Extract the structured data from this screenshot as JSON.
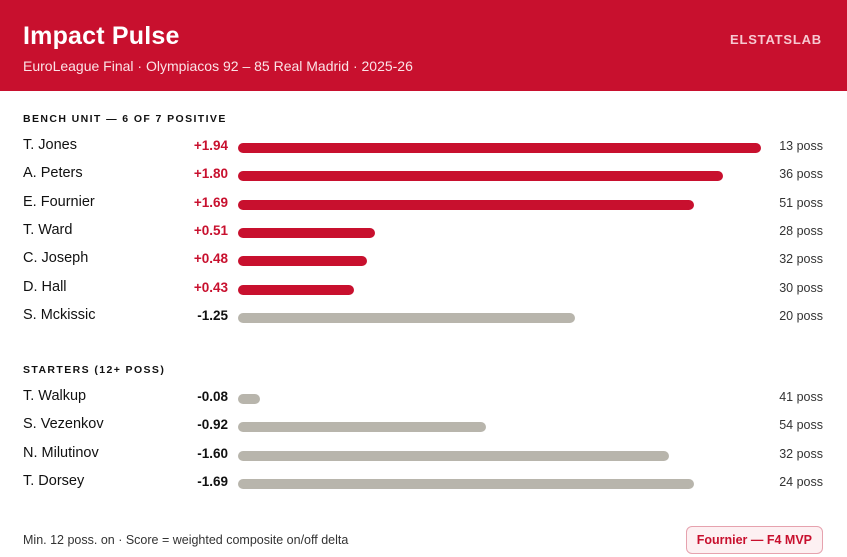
{
  "header": {
    "title": "Impact Pulse",
    "subtitle": "EuroLeague Final · Olympiacos 92 – 85 Real Madrid · 2025-26",
    "brand": "ELSTATSLAB"
  },
  "sections": {
    "bench_label": "BENCH UNIT — 6 OF 7 POSITIVE",
    "starters_label": "STARTERS (12+ POSS)"
  },
  "footer": {
    "note": "Min. 12 poss. on · Score = weighted composite on/off delta",
    "badge": "Fournier — F4 MVP"
  },
  "colors": {
    "accent": "#c8102e",
    "negative_bar": "#b8b5ac"
  },
  "chart_data": {
    "type": "bar",
    "orientation": "horizontal",
    "value_max": 1.94,
    "groups": [
      {
        "label": "BENCH UNIT — 6 OF 7 POSITIVE",
        "rows": [
          {
            "name": "T. Jones",
            "score": "+1.94",
            "value": 1.94,
            "poss": "13 poss"
          },
          {
            "name": "A. Peters",
            "score": "+1.80",
            "value": 1.8,
            "poss": "36 poss"
          },
          {
            "name": "E. Fournier",
            "score": "+1.69",
            "value": 1.69,
            "poss": "51 poss"
          },
          {
            "name": "T. Ward",
            "score": "+0.51",
            "value": 0.51,
            "poss": "28 poss"
          },
          {
            "name": "C. Joseph",
            "score": "+0.48",
            "value": 0.48,
            "poss": "32 poss"
          },
          {
            "name": "D. Hall",
            "score": "+0.43",
            "value": 0.43,
            "poss": "30 poss"
          },
          {
            "name": "S. Mckissic",
            "score": "-1.25",
            "value": -1.25,
            "poss": "20 poss"
          }
        ]
      },
      {
        "label": "STARTERS (12+ POSS)",
        "rows": [
          {
            "name": "T. Walkup",
            "score": "-0.08",
            "value": -0.08,
            "poss": "41 poss"
          },
          {
            "name": "S. Vezenkov",
            "score": "-0.92",
            "value": -0.92,
            "poss": "54 poss"
          },
          {
            "name": "N. Milutinov",
            "score": "-1.60",
            "value": -1.6,
            "poss": "32 poss"
          },
          {
            "name": "T. Dorsey",
            "score": "-1.69",
            "value": -1.69,
            "poss": "24 poss"
          }
        ]
      }
    ]
  }
}
